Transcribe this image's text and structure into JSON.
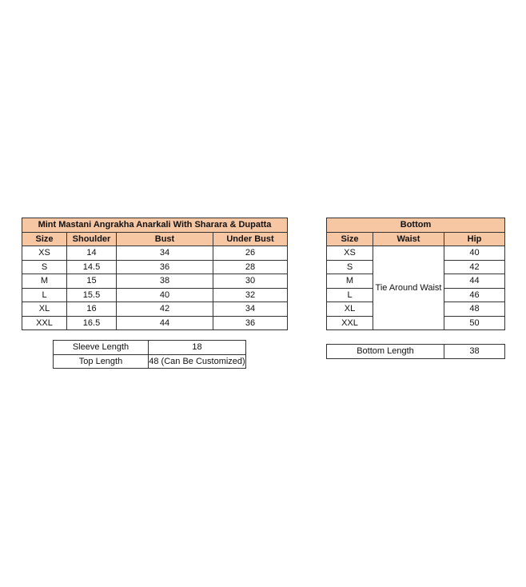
{
  "top_table": {
    "title": "Mint Mastani Angrakha Anarkali With Sharara & Dupatta",
    "headers": [
      "Size",
      "Shoulder",
      "Bust",
      "Under Bust"
    ],
    "rows": [
      [
        "XS",
        "14",
        "34",
        "26"
      ],
      [
        "S",
        "14.5",
        "36",
        "28"
      ],
      [
        "M",
        "15",
        "38",
        "30"
      ],
      [
        "L",
        "15.5",
        "40",
        "32"
      ],
      [
        "XL",
        "16",
        "42",
        "34"
      ],
      [
        "XXL",
        "16.5",
        "44",
        "36"
      ]
    ]
  },
  "top_extra": [
    [
      "Sleeve Length",
      "18"
    ],
    [
      "Top Length",
      "48 (Can Be Customized)"
    ]
  ],
  "bottom_table": {
    "title": "Bottom",
    "headers": [
      "Size",
      "Waist",
      "Hip"
    ],
    "waist_value": "Tie Around Waist",
    "sizes": [
      "XS",
      "S",
      "M",
      "L",
      "XL",
      "XXL"
    ],
    "hips": [
      "40",
      "42",
      "44",
      "46",
      "48",
      "50"
    ]
  },
  "bottom_extra": [
    [
      "Bottom Length",
      "38"
    ]
  ],
  "colors": {
    "header_fill": "#f7c6a3",
    "border": "#333333"
  }
}
